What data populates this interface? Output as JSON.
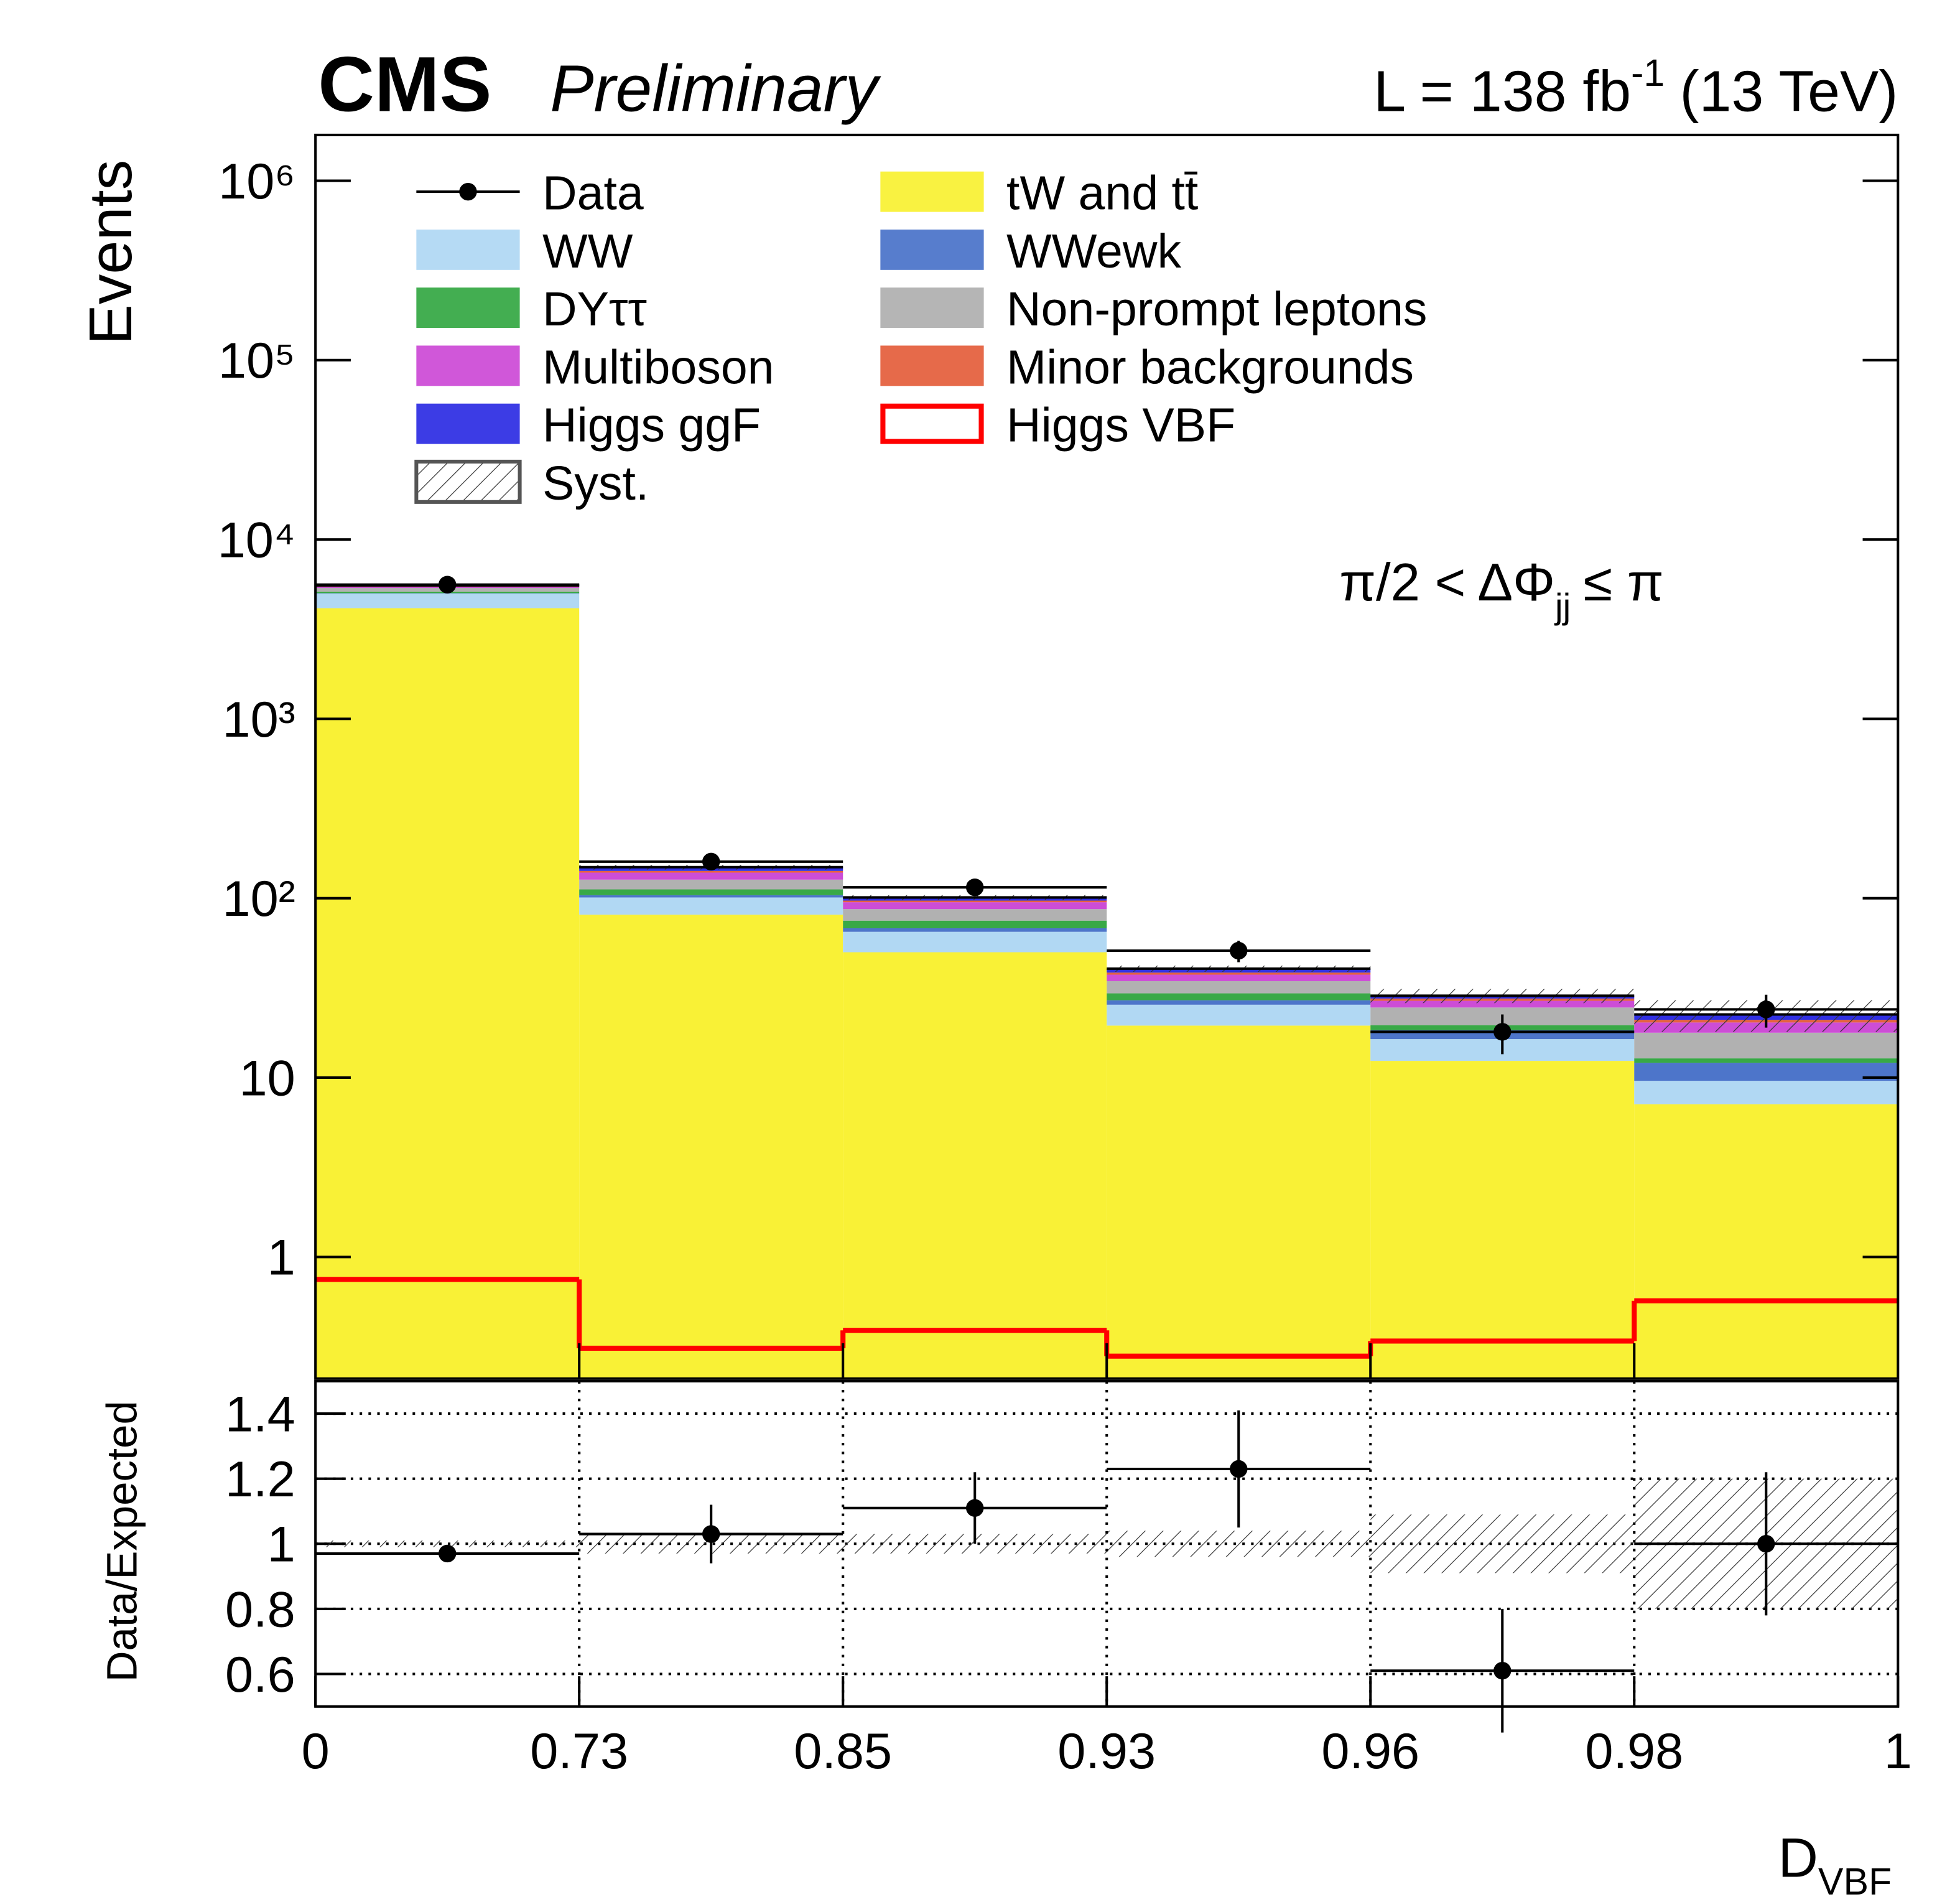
{
  "chart_data": [
    {
      "type": "histogram",
      "experiment": "CMS",
      "status": "Preliminary",
      "lumi": {
        "prefix": "L = 138 fb",
        "exponent": "-1",
        "suffix": "(13 TeV)"
      },
      "annotation": {
        "text": "π/2 < ΔΦ",
        "sub": "jj",
        "rest": "≤ π"
      },
      "ylabel": "Events",
      "xlabel": {
        "text": "D",
        "sub": "VBF"
      },
      "bins": [
        0,
        0.73,
        0.85,
        0.93,
        0.96,
        0.98,
        1
      ],
      "log_y": true,
      "ylim": [
        0.21,
        1800000
      ],
      "yticks": [
        1,
        10,
        {
          "value": 100,
          "label": "10²"
        },
        {
          "value": 1000,
          "label": "10³"
        },
        {
          "value": 10000,
          "label": "10⁴"
        },
        {
          "value": 100000,
          "label": "10⁵"
        },
        {
          "value": 1000000,
          "label": "10⁶"
        }
      ],
      "series": [
        {
          "name": "tW and tt̄",
          "color": "#f8f020",
          "stacked": true,
          "values": [
            4140,
            81,
            50,
            19.5,
            12.4,
            7.1
          ]
        },
        {
          "name": "WW",
          "color": "#a8d4f2",
          "stacked": true,
          "values": [
            860,
            20,
            15,
            6,
            4,
            2.5
          ]
        },
        {
          "name": "WWewk",
          "color": "#3a66c4",
          "stacked": true,
          "values": [
            20,
            3,
            3,
            1.5,
            2,
            2.5
          ]
        },
        {
          "name": "DYττ",
          "color": "#22a032",
          "stacked": true,
          "values": [
            100,
            8,
            7,
            2.5,
            1.2,
            0.7
          ]
        },
        {
          "name": "Non-prompt leptons",
          "color": "#a8a8a8",
          "stacked": true,
          "values": [
            250,
            15,
            12,
            5,
            5,
            5
          ]
        },
        {
          "name": "Multiboson",
          "color": "#c83ad2",
          "stacked": true,
          "values": [
            80,
            12,
            8,
            3,
            2.2,
            2.5
          ]
        },
        {
          "name": "Minor backgrounds",
          "color": "#e2502a",
          "stacked": true,
          "values": [
            30,
            3,
            2,
            1,
            0.8,
            0.7
          ]
        },
        {
          "name": "Higgs ggF",
          "color": "#1a1ae0",
          "stacked": true,
          "values": [
            70,
            7,
            4,
            2,
            1,
            1.5
          ]
        },
        {
          "name": "Higgs VBF",
          "color": "#ff0000",
          "stacked": false,
          "values": [
            0.75,
            0.31,
            0.39,
            0.28,
            0.34,
            0.57
          ]
        }
      ],
      "data": {
        "name": "Data",
        "color": "#000000",
        "values": [
          5600,
          160,
          115,
          51,
          18,
          24
        ],
        "errors": [
          75,
          13,
          11,
          7,
          4.5,
          5
        ]
      },
      "syst": {
        "name": "Syst.",
        "values": [
          0.01,
          0.03,
          0.03,
          0.04,
          0.09,
          0.2
        ]
      }
    },
    {
      "type": "errorbar",
      "ylabel": "Data/Expected",
      "ylim": [
        0.5,
        1.5
      ],
      "yticks": [
        0.6,
        0.8,
        1,
        1.2,
        1.4
      ],
      "grid": "dotted",
      "values": [
        0.97,
        1.03,
        1.11,
        1.23,
        0.61,
        1.0
      ],
      "errors": [
        0.013,
        0.09,
        0.11,
        0.18,
        0.19,
        0.22
      ]
    }
  ]
}
